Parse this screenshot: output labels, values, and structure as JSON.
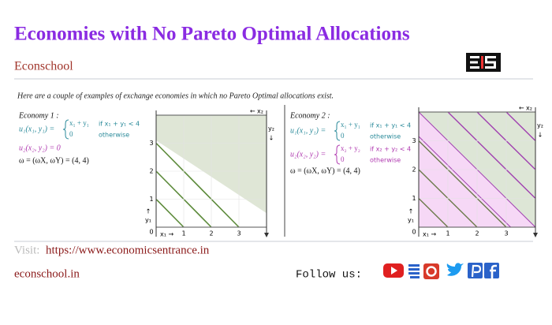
{
  "header": {
    "title": "Economies with No Pareto Optimal Allocations",
    "brand": "Econschool"
  },
  "intro": "Here are a couple of examples of exchange economies in which no Pareto Optimal allocations exist.",
  "economies": [
    {
      "label": "Economy 1 :",
      "u1": {
        "lhs": "u₁(x₁, y₁) =",
        "cases": [
          [
            "x₁ + y₁",
            "if x₁ + y₁ < 4"
          ],
          [
            "0",
            "otherwise"
          ]
        ]
      },
      "u2": {
        "lhs": "u₂(x₂, y₂) = 0"
      },
      "endowment": "ω = (ωX, ωY) = (4, 4)"
    },
    {
      "label": "Economy 2 :",
      "u1": {
        "lhs": "u₁(x₁, y₁) =",
        "cases": [
          [
            "x₁ + y₁",
            "if x₁ + y₁ < 4"
          ],
          [
            "0",
            "otherwise"
          ]
        ]
      },
      "u2": {
        "lhs": "u₂(x₂, y₂) =",
        "cases": [
          [
            "x₂ + y₂",
            "if x₂ + y₂ < 4"
          ],
          [
            "0",
            "otherwise"
          ]
        ]
      },
      "endowment": "ω = (ωX, ωY) = (4, 4)"
    }
  ],
  "diagram_labels": {
    "origin": "0",
    "x1": "x₁ →",
    "y1_arrow": "↑",
    "y1": "y₁",
    "x2": "← x₂",
    "y2": "y₂",
    "y2_arrow": "↓",
    "xticks": [
      "1",
      "2",
      "3"
    ],
    "yticks": [
      "1",
      "2",
      "3"
    ]
  },
  "footer": {
    "visit_label": "Visit:",
    "url": "https://www.economicsentrance.in",
    "site": "econschool.in",
    "follow": "Follow us:"
  }
}
